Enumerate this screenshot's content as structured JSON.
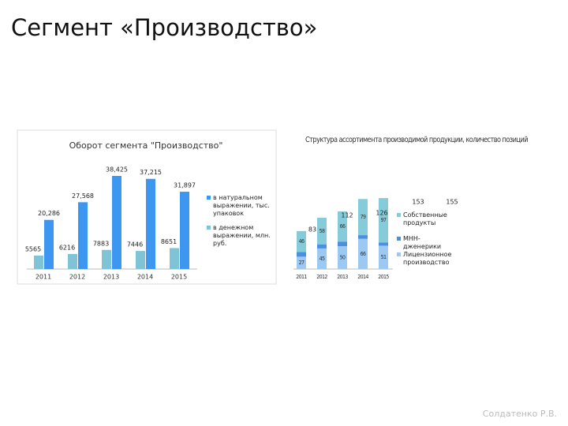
{
  "slide_title": "Сегмент «Производство»",
  "footer": "Солдатенко Р.В.",
  "chart_data": [
    {
      "type": "bar",
      "title": "Оборот сегмента \"Производство\"",
      "categories": [
        "2011",
        "2012",
        "2013",
        "2014",
        "2015"
      ],
      "series": [
        {
          "name": "в натуральном выражении, тыс. упаковок",
          "color": "#3d97f0",
          "values": [
            20286,
            27568,
            38425,
            37215,
            31897
          ],
          "value_labels": [
            "20,286",
            "27,568",
            "38,425",
            "37,215",
            "31,897"
          ]
        },
        {
          "name": "в денежном выражении, млн. руб.",
          "color": "#7ec4d6",
          "values": [
            5565,
            6216,
            7883,
            7446,
            8651
          ]
        }
      ]
    },
    {
      "type": "stacked_bar",
      "title": "Структура ассортимента производимой продукции, количество позиций",
      "categories": [
        "2011",
        "2012",
        "2013",
        "2014",
        "2015"
      ],
      "series": [
        {
          "name": "Лицензионное производство",
          "color": "#9cc8f2",
          "values": [
            27,
            45,
            50,
            66,
            51
          ]
        },
        {
          "name": "МНН-дженерики",
          "color": "#4a8fe0",
          "values": [
            10,
            9,
            10,
            8,
            7
          ]
        },
        {
          "name": "Собственные продукты",
          "color": "#86cbd9",
          "values": [
            46,
            58,
            66,
            79,
            97
          ]
        }
      ],
      "labeled_series": [
        0,
        2
      ],
      "totals": [
        83,
        112,
        126,
        153,
        155
      ]
    }
  ]
}
